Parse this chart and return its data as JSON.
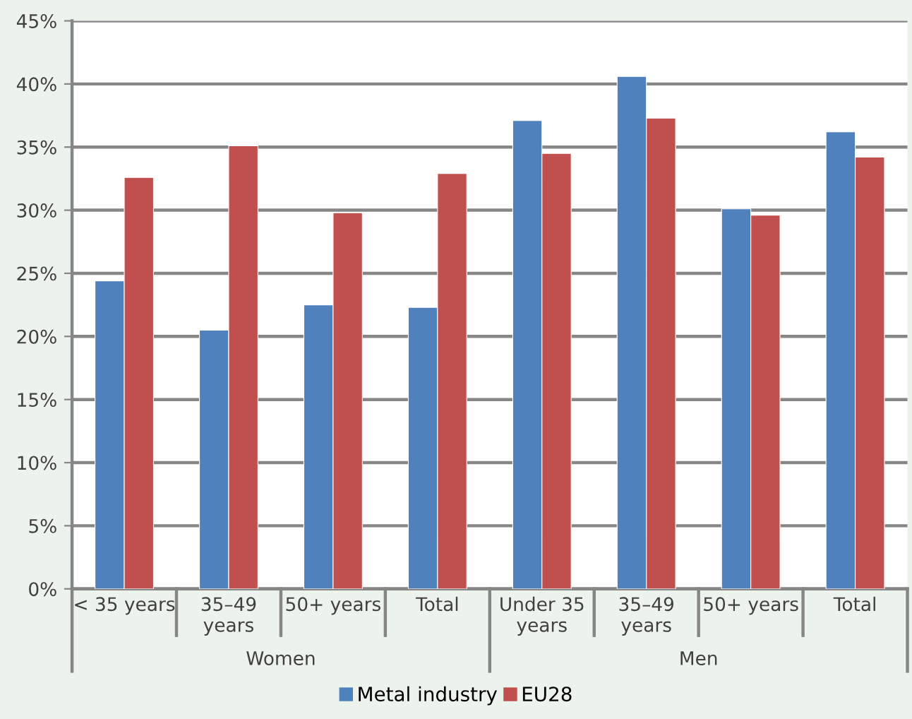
{
  "chart_data": {
    "type": "bar",
    "categories": [
      "< 35 years",
      "35–49\nyears",
      "50+ years",
      "Total",
      "Under 35\nyears",
      "35–49\nyears",
      "50+ years",
      "Total"
    ],
    "series": [
      {
        "name": "Metal industry",
        "color": "#4f81bd",
        "values": [
          24.4,
          20.5,
          22.5,
          22.3,
          37.1,
          40.6,
          30.1,
          36.2
        ]
      },
      {
        "name": "EU28",
        "color": "#c0504d",
        "values": [
          32.6,
          35.1,
          29.8,
          32.9,
          34.5,
          37.3,
          29.6,
          34.2
        ]
      }
    ],
    "annotations": [
      "Women",
      "Men"
    ],
    "ylim": [
      0,
      45
    ],
    "yticks": [
      {
        "value": 0,
        "label": "0%"
      },
      {
        "value": 5,
        "label": "5%"
      },
      {
        "value": 10,
        "label": "10%"
      },
      {
        "value": 15,
        "label": "15%"
      },
      {
        "value": 20,
        "label": "20%"
      },
      {
        "value": 25,
        "label": "25%"
      },
      {
        "value": 30,
        "label": "30%"
      },
      {
        "value": 35,
        "label": "35%"
      },
      {
        "value": 40,
        "label": "40%"
      },
      {
        "value": 45,
        "label": "45%"
      }
    ],
    "grid": "y",
    "legend": "bottom"
  }
}
